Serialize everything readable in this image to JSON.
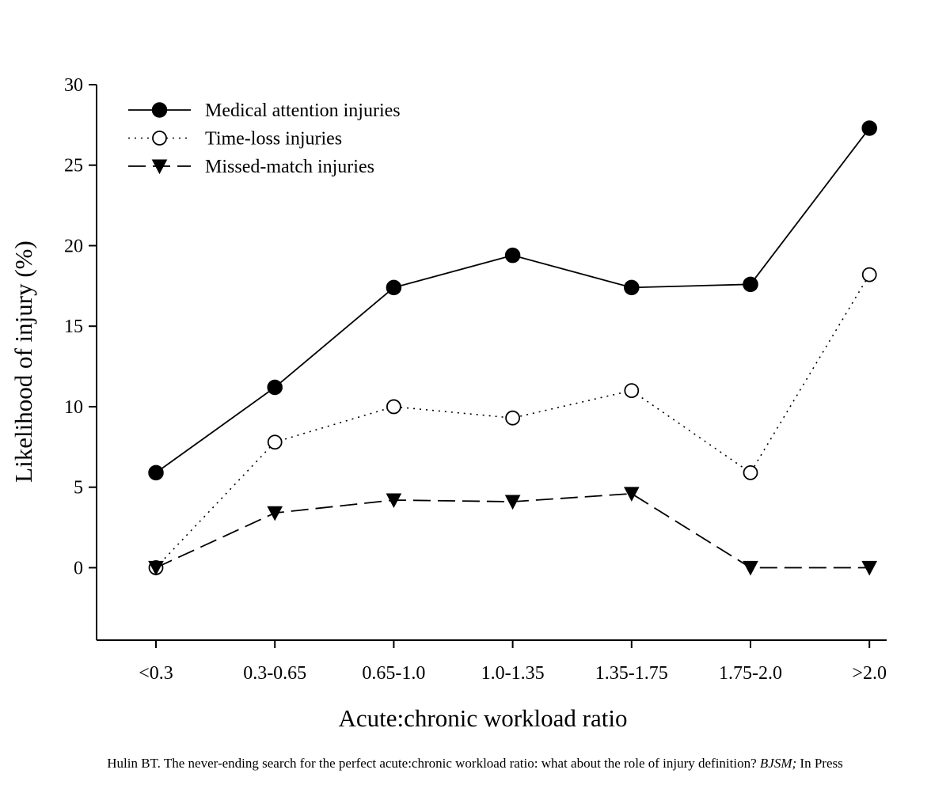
{
  "chart_data": {
    "type": "line",
    "xlabel": "Acute:chronic workload ratio",
    "ylabel": "Likelihood of injury (%)",
    "categories": [
      "<0.3",
      "0.3-0.65",
      "0.65-1.0",
      "1.0-1.35",
      "1.35-1.75",
      "1.75-2.0",
      ">2.0"
    ],
    "ylim": [
      -4.5,
      30
    ],
    "yticks": [
      0,
      5,
      10,
      15,
      20,
      25,
      30
    ],
    "grid": false,
    "legend_position": "top-left",
    "series": [
      {
        "name": "Medical attention injuries",
        "marker": "filled-circle",
        "line_style": "solid",
        "values": [
          5.9,
          11.2,
          17.4,
          19.4,
          17.4,
          17.6,
          27.3
        ]
      },
      {
        "name": "Time-loss injuries",
        "marker": "open-circle",
        "line_style": "dotted",
        "values": [
          0.0,
          7.8,
          10.0,
          9.3,
          11.0,
          5.9,
          18.2
        ]
      },
      {
        "name": "Missed-match injuries",
        "marker": "filled-triangle-down",
        "line_style": "dashed",
        "values": [
          0.0,
          3.4,
          4.2,
          4.1,
          4.6,
          0.0,
          0.0
        ]
      }
    ]
  },
  "caption": {
    "text_before": "Hulin BT. The never-ending search for the perfect acute:chronic workload ratio: what about the role of injury definition? ",
    "journal": "BJSM;",
    "text_after": " In Press"
  },
  "colors": {
    "ink": "#000000",
    "background": "#ffffff"
  }
}
